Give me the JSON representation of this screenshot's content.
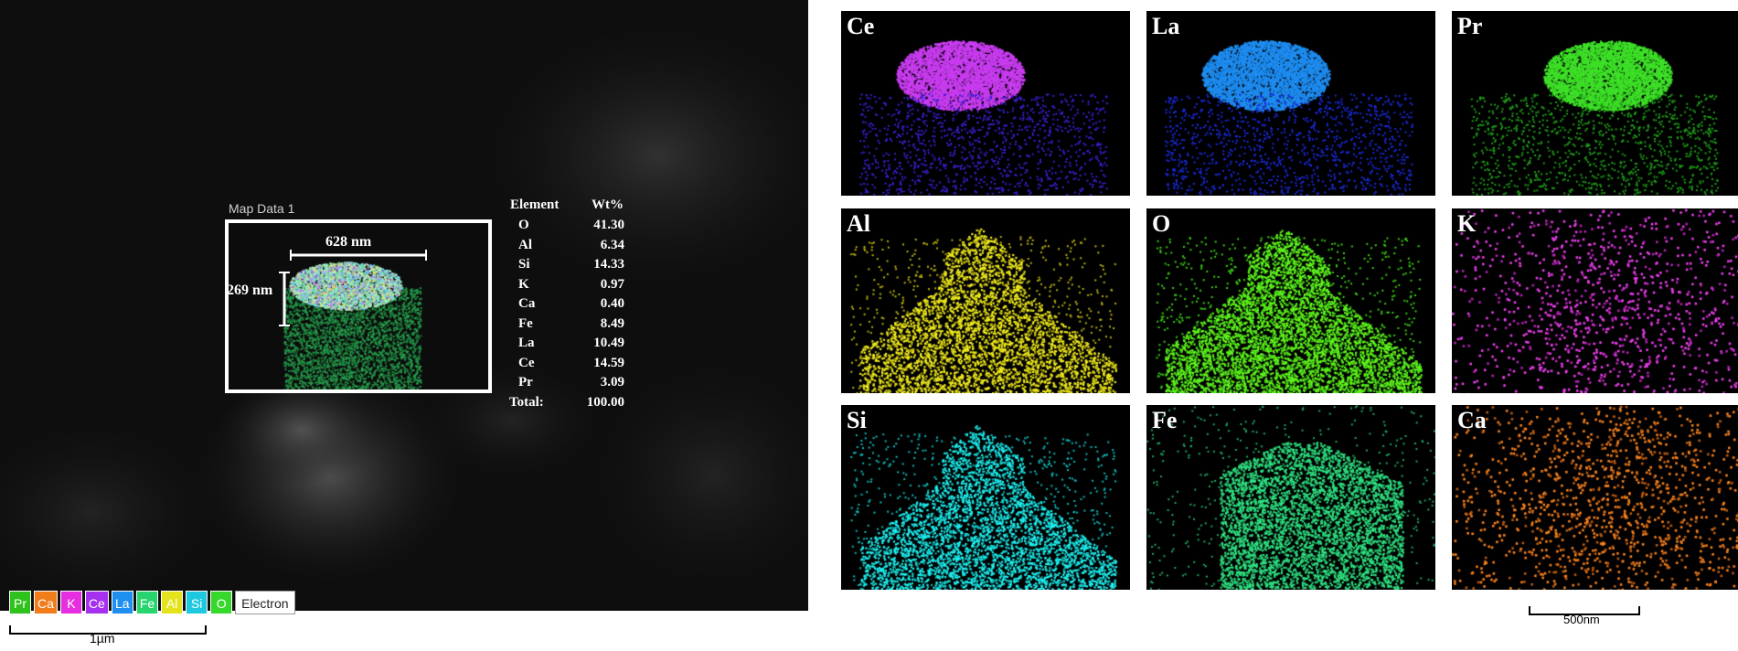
{
  "sem_image": {
    "map_label": "Map Data 1",
    "width_annotation": "628 nm",
    "height_annotation": "269 nm",
    "scale_bar_label": "1µm"
  },
  "composition_table": {
    "header": {
      "element": "Element",
      "wt": "Wt%"
    },
    "rows": [
      {
        "element": "O",
        "wt": "41.30"
      },
      {
        "element": "Al",
        "wt": "6.34"
      },
      {
        "element": "Si",
        "wt": "14.33"
      },
      {
        "element": "K",
        "wt": "0.97"
      },
      {
        "element": "Ca",
        "wt": "0.40"
      },
      {
        "element": "Fe",
        "wt": "8.49"
      },
      {
        "element": "La",
        "wt": "10.49"
      },
      {
        "element": "Ce",
        "wt": "14.59"
      },
      {
        "element": "Pr",
        "wt": "3.09"
      },
      {
        "element": "Total:",
        "wt": "100.00"
      }
    ]
  },
  "legend": [
    {
      "label": "Pr",
      "color": "#2fc21c"
    },
    {
      "label": "Ca",
      "color": "#f07c1a"
    },
    {
      "label": "K",
      "color": "#e52ee0"
    },
    {
      "label": "Ce",
      "color": "#a630f0"
    },
    {
      "label": "La",
      "color": "#1e8ff0"
    },
    {
      "label": "Fe",
      "color": "#27d46e"
    },
    {
      "label": "Al",
      "color": "#e4e21c"
    },
    {
      "label": "Si",
      "color": "#1ec9e0"
    },
    {
      "label": "O",
      "color": "#36d82c"
    },
    {
      "label": "Electron",
      "color": "#ffffff"
    }
  ],
  "element_maps": [
    {
      "label": "Ce",
      "color": "#c93cf0",
      "color2": "#3a1fd0",
      "pattern": "top-blob"
    },
    {
      "label": "La",
      "color": "#1e8cf0",
      "color2": "#1a2ad8",
      "pattern": "top-blob"
    },
    {
      "label": "Pr",
      "color": "#3ee028",
      "color2": "#1f9e18",
      "pattern": "top-blob-right"
    },
    {
      "label": "Al",
      "color": "#f0ea1c",
      "color2": "#b8b010",
      "pattern": "bottom-mound"
    },
    {
      "label": "O",
      "color": "#5ef51c",
      "color2": "#3ccc14",
      "pattern": "bottom-mound-dense"
    },
    {
      "label": "K",
      "color": "#e63ee6",
      "color2": "#b020b0",
      "pattern": "scatter"
    },
    {
      "label": "Si",
      "color": "#1ef0f0",
      "color2": "#12b8b8",
      "pattern": "bottom-mound"
    },
    {
      "label": "Fe",
      "color": "#2ee080",
      "color2": "#1fa860",
      "pattern": "mid-blob"
    },
    {
      "label": "Ca",
      "color": "#f5801e",
      "color2": "#b85a10",
      "pattern": "scatter-dense"
    }
  ],
  "maps_scale_bar_label": "500nm"
}
